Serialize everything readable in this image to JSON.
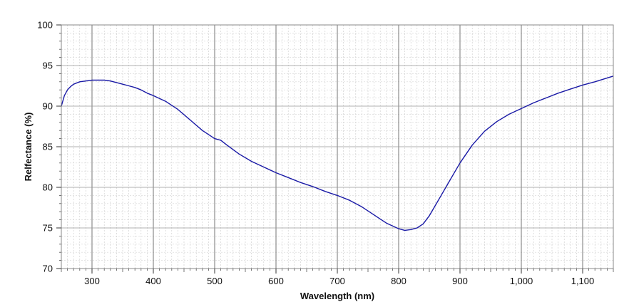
{
  "chart_data": {
    "type": "line",
    "title": "",
    "xlabel": "Wavelength (nm)",
    "ylabel": "Relfectance (%)",
    "xlim": [
      250,
      1150
    ],
    "ylim": [
      70,
      100
    ],
    "x_major_ticks": [
      300,
      400,
      500,
      600,
      700,
      800,
      900,
      1000,
      1100
    ],
    "x_tick_labels": [
      "300",
      "400",
      "500",
      "600",
      "700",
      "800",
      "900",
      "1,000",
      "1,100"
    ],
    "y_major_ticks": [
      70,
      75,
      80,
      85,
      90,
      95,
      100
    ],
    "y_tick_labels": [
      "70",
      "75",
      "80",
      "85",
      "90",
      "95",
      "100"
    ],
    "grid": true,
    "legend": "none",
    "series": [
      {
        "color": "#1a1aa6",
        "x": [
          250,
          255,
          260,
          265,
          270,
          280,
          290,
          300,
          310,
          320,
          330,
          340,
          350,
          360,
          370,
          380,
          390,
          400,
          420,
          440,
          460,
          480,
          500,
          510,
          520,
          540,
          560,
          580,
          600,
          620,
          640,
          660,
          680,
          700,
          720,
          740,
          760,
          780,
          800,
          810,
          820,
          830,
          840,
          850,
          860,
          870,
          880,
          900,
          920,
          940,
          960,
          980,
          1000,
          1020,
          1040,
          1060,
          1080,
          1100,
          1120,
          1150
        ],
        "y": [
          90.0,
          91.3,
          92.0,
          92.4,
          92.7,
          93.0,
          93.1,
          93.2,
          93.2,
          93.2,
          93.1,
          92.9,
          92.7,
          92.5,
          92.3,
          92.0,
          91.6,
          91.3,
          90.6,
          89.6,
          88.3,
          87.0,
          86.0,
          85.8,
          85.2,
          84.1,
          83.2,
          82.5,
          81.8,
          81.2,
          80.6,
          80.1,
          79.5,
          79.0,
          78.4,
          77.6,
          76.6,
          75.6,
          74.9,
          74.7,
          74.8,
          75.0,
          75.5,
          76.5,
          77.8,
          79.1,
          80.4,
          83.0,
          85.2,
          86.9,
          88.1,
          89.0,
          89.7,
          90.4,
          91.0,
          91.6,
          92.1,
          92.6,
          93.0,
          93.7
        ]
      }
    ]
  }
}
